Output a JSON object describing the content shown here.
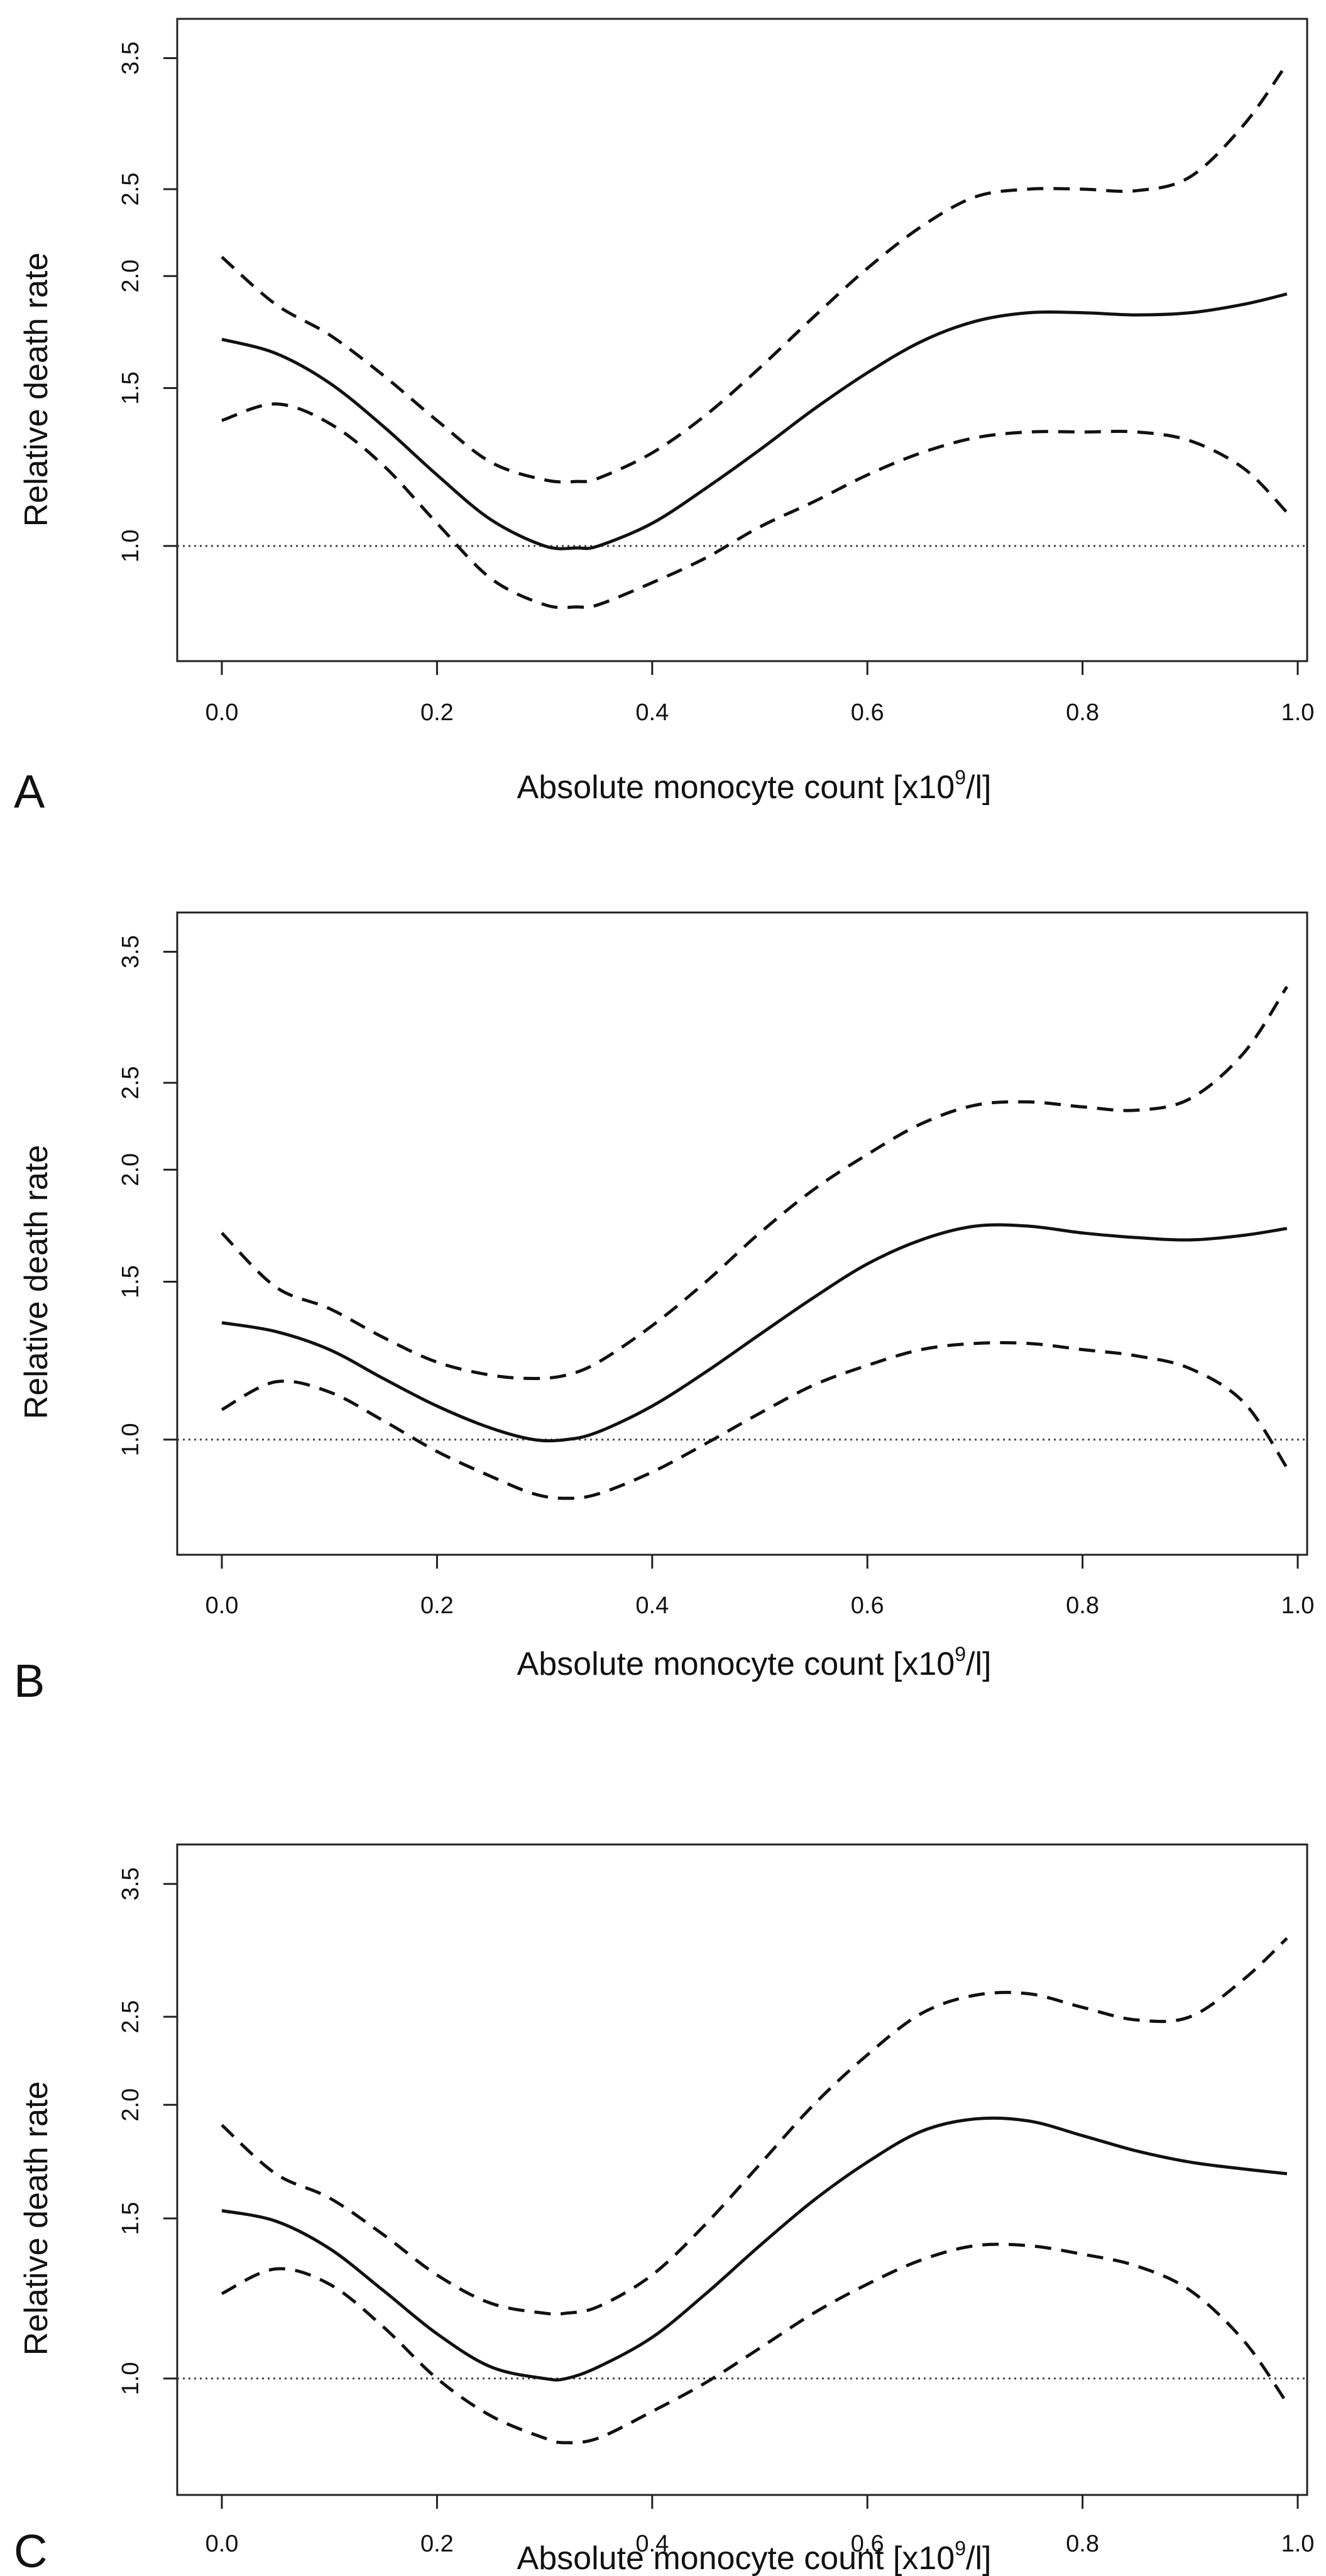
{
  "figure_title": "",
  "chart_data": [
    {
      "type": "line",
      "panel": "A",
      "title": "",
      "xlabel": "Absolute monocyte count [x10",
      "xlabel_superscript": "9",
      "xlabel_suffix": "/l]",
      "ylabel": "Relative death rate",
      "x_ticks": [
        "0.0",
        "0.2",
        "0.4",
        "0.6",
        "0.8",
        "1.0"
      ],
      "y_ticks": [
        "1.0",
        "1.5",
        "2.0",
        "2.5",
        "3.5"
      ],
      "y_tick_values": [
        1.0,
        1.5,
        2.0,
        2.5,
        3.5
      ],
      "y_scale": "log",
      "xlim": [
        0.0,
        1.0
      ],
      "ylim": [
        0.8,
        3.6
      ],
      "reference_line": 1.0,
      "series": [
        {
          "name": "estimate",
          "style": "solid",
          "x": [
            0.0,
            0.05,
            0.1,
            0.15,
            0.2,
            0.25,
            0.3,
            0.33,
            0.35,
            0.4,
            0.45,
            0.5,
            0.55,
            0.6,
            0.65,
            0.7,
            0.75,
            0.8,
            0.85,
            0.9,
            0.95,
            0.99
          ],
          "values": [
            1.7,
            1.64,
            1.52,
            1.36,
            1.2,
            1.07,
            1.0,
            0.995,
            1.0,
            1.06,
            1.16,
            1.28,
            1.42,
            1.56,
            1.69,
            1.78,
            1.82,
            1.82,
            1.81,
            1.82,
            1.86,
            1.91
          ]
        },
        {
          "name": "upper 95% CI",
          "style": "dashed",
          "x": [
            0.0,
            0.05,
            0.1,
            0.15,
            0.2,
            0.25,
            0.3,
            0.33,
            0.35,
            0.4,
            0.45,
            0.5,
            0.55,
            0.6,
            0.65,
            0.7,
            0.75,
            0.8,
            0.85,
            0.9,
            0.95,
            0.99
          ],
          "values": [
            2.1,
            1.86,
            1.72,
            1.55,
            1.38,
            1.24,
            1.185,
            1.18,
            1.19,
            1.27,
            1.4,
            1.58,
            1.8,
            2.04,
            2.27,
            2.45,
            2.5,
            2.5,
            2.49,
            2.58,
            2.95,
            3.45
          ]
        },
        {
          "name": "lower 95% CI",
          "style": "dashed",
          "x": [
            0.0,
            0.05,
            0.1,
            0.15,
            0.2,
            0.25,
            0.3,
            0.33,
            0.35,
            0.4,
            0.45,
            0.5,
            0.55,
            0.6,
            0.65,
            0.7,
            0.75,
            0.8,
            0.85,
            0.9,
            0.95,
            0.99
          ],
          "values": [
            1.38,
            1.44,
            1.37,
            1.23,
            1.06,
            0.92,
            0.86,
            0.855,
            0.86,
            0.91,
            0.97,
            1.05,
            1.12,
            1.2,
            1.27,
            1.32,
            1.34,
            1.34,
            1.34,
            1.31,
            1.22,
            1.09
          ]
        }
      ]
    },
    {
      "type": "line",
      "panel": "B",
      "title": "",
      "xlabel": "Absolute monocyte count [x10",
      "xlabel_superscript": "9",
      "xlabel_suffix": "/l]",
      "ylabel": "Relative death rate",
      "x_ticks": [
        "0.0",
        "0.2",
        "0.4",
        "0.6",
        "0.8",
        "1.0"
      ],
      "y_ticks": [
        "1.0",
        "1.5",
        "2.0",
        "2.5",
        "3.5"
      ],
      "y_tick_values": [
        1.0,
        1.5,
        2.0,
        2.5,
        3.5
      ],
      "y_scale": "log",
      "xlim": [
        0.0,
        1.0
      ],
      "ylim": [
        0.8,
        3.6
      ],
      "reference_line": 1.0,
      "series": [
        {
          "name": "estimate",
          "style": "solid",
          "x": [
            0.0,
            0.05,
            0.1,
            0.15,
            0.2,
            0.25,
            0.29,
            0.32,
            0.35,
            0.4,
            0.45,
            0.5,
            0.55,
            0.6,
            0.65,
            0.7,
            0.75,
            0.8,
            0.85,
            0.9,
            0.95,
            0.99
          ],
          "values": [
            1.35,
            1.32,
            1.26,
            1.17,
            1.09,
            1.03,
            1.0,
            1.0,
            1.02,
            1.09,
            1.19,
            1.31,
            1.44,
            1.57,
            1.67,
            1.73,
            1.73,
            1.7,
            1.68,
            1.67,
            1.69,
            1.72
          ]
        },
        {
          "name": "upper 95% CI",
          "style": "dashed",
          "x": [
            0.0,
            0.05,
            0.1,
            0.15,
            0.2,
            0.25,
            0.29,
            0.32,
            0.35,
            0.4,
            0.45,
            0.5,
            0.55,
            0.6,
            0.65,
            0.7,
            0.75,
            0.8,
            0.85,
            0.9,
            0.95,
            0.99
          ],
          "values": [
            1.7,
            1.48,
            1.4,
            1.3,
            1.22,
            1.18,
            1.17,
            1.18,
            1.22,
            1.34,
            1.5,
            1.7,
            1.9,
            2.08,
            2.25,
            2.36,
            2.38,
            2.35,
            2.33,
            2.4,
            2.7,
            3.2
          ]
        },
        {
          "name": "lower 95% CI",
          "style": "dashed",
          "x": [
            0.0,
            0.05,
            0.1,
            0.15,
            0.2,
            0.25,
            0.29,
            0.32,
            0.35,
            0.4,
            0.45,
            0.5,
            0.55,
            0.6,
            0.65,
            0.7,
            0.75,
            0.8,
            0.85,
            0.9,
            0.95,
            0.99
          ],
          "values": [
            1.08,
            1.16,
            1.13,
            1.05,
            0.97,
            0.91,
            0.87,
            0.86,
            0.87,
            0.92,
            0.99,
            1.07,
            1.15,
            1.21,
            1.26,
            1.28,
            1.28,
            1.26,
            1.24,
            1.2,
            1.1,
            0.93
          ]
        }
      ]
    },
    {
      "type": "line",
      "panel": "C",
      "title": "",
      "xlabel": "Absolute monocyte count [x10",
      "xlabel_superscript": "9",
      "xlabel_suffix": "/l]",
      "ylabel": "Relative death rate",
      "x_ticks": [
        "0.0",
        "0.2",
        "0.4",
        "0.6",
        "0.8",
        "1.0"
      ],
      "y_ticks": [
        "1.0",
        "1.5",
        "2.0",
        "2.5",
        "3.5"
      ],
      "y_tick_values": [
        1.0,
        1.5,
        2.0,
        2.5,
        3.5
      ],
      "y_scale": "log",
      "xlim": [
        0.0,
        1.0
      ],
      "ylim": [
        0.8,
        3.6
      ],
      "reference_line": 1.0,
      "series": [
        {
          "name": "estimate",
          "style": "solid",
          "x": [
            0.0,
            0.05,
            0.1,
            0.15,
            0.2,
            0.25,
            0.3,
            0.32,
            0.35,
            0.4,
            0.45,
            0.5,
            0.55,
            0.6,
            0.65,
            0.7,
            0.75,
            0.8,
            0.85,
            0.9,
            0.95,
            0.99
          ],
          "values": [
            1.53,
            1.49,
            1.39,
            1.25,
            1.12,
            1.03,
            1.0,
            1.0,
            1.03,
            1.11,
            1.24,
            1.4,
            1.57,
            1.73,
            1.87,
            1.93,
            1.92,
            1.85,
            1.78,
            1.73,
            1.7,
            1.68
          ]
        },
        {
          "name": "upper 95% CI",
          "style": "dashed",
          "x": [
            0.0,
            0.05,
            0.1,
            0.15,
            0.2,
            0.25,
            0.3,
            0.32,
            0.35,
            0.4,
            0.45,
            0.5,
            0.55,
            0.6,
            0.65,
            0.7,
            0.75,
            0.8,
            0.85,
            0.9,
            0.95,
            0.99
          ],
          "values": [
            1.9,
            1.68,
            1.58,
            1.44,
            1.3,
            1.21,
            1.18,
            1.18,
            1.2,
            1.3,
            1.48,
            1.72,
            2.0,
            2.27,
            2.52,
            2.64,
            2.65,
            2.56,
            2.48,
            2.5,
            2.75,
            3.05
          ]
        },
        {
          "name": "lower 95% CI",
          "style": "dashed",
          "x": [
            0.0,
            0.05,
            0.1,
            0.15,
            0.2,
            0.25,
            0.3,
            0.32,
            0.35,
            0.4,
            0.45,
            0.5,
            0.55,
            0.6,
            0.65,
            0.7,
            0.75,
            0.8,
            0.85,
            0.9,
            0.95,
            0.99
          ],
          "values": [
            1.24,
            1.32,
            1.27,
            1.14,
            1.0,
            0.91,
            0.86,
            0.85,
            0.86,
            0.92,
            0.99,
            1.08,
            1.18,
            1.27,
            1.35,
            1.4,
            1.4,
            1.37,
            1.33,
            1.25,
            1.1,
            0.94
          ]
        }
      ]
    }
  ]
}
